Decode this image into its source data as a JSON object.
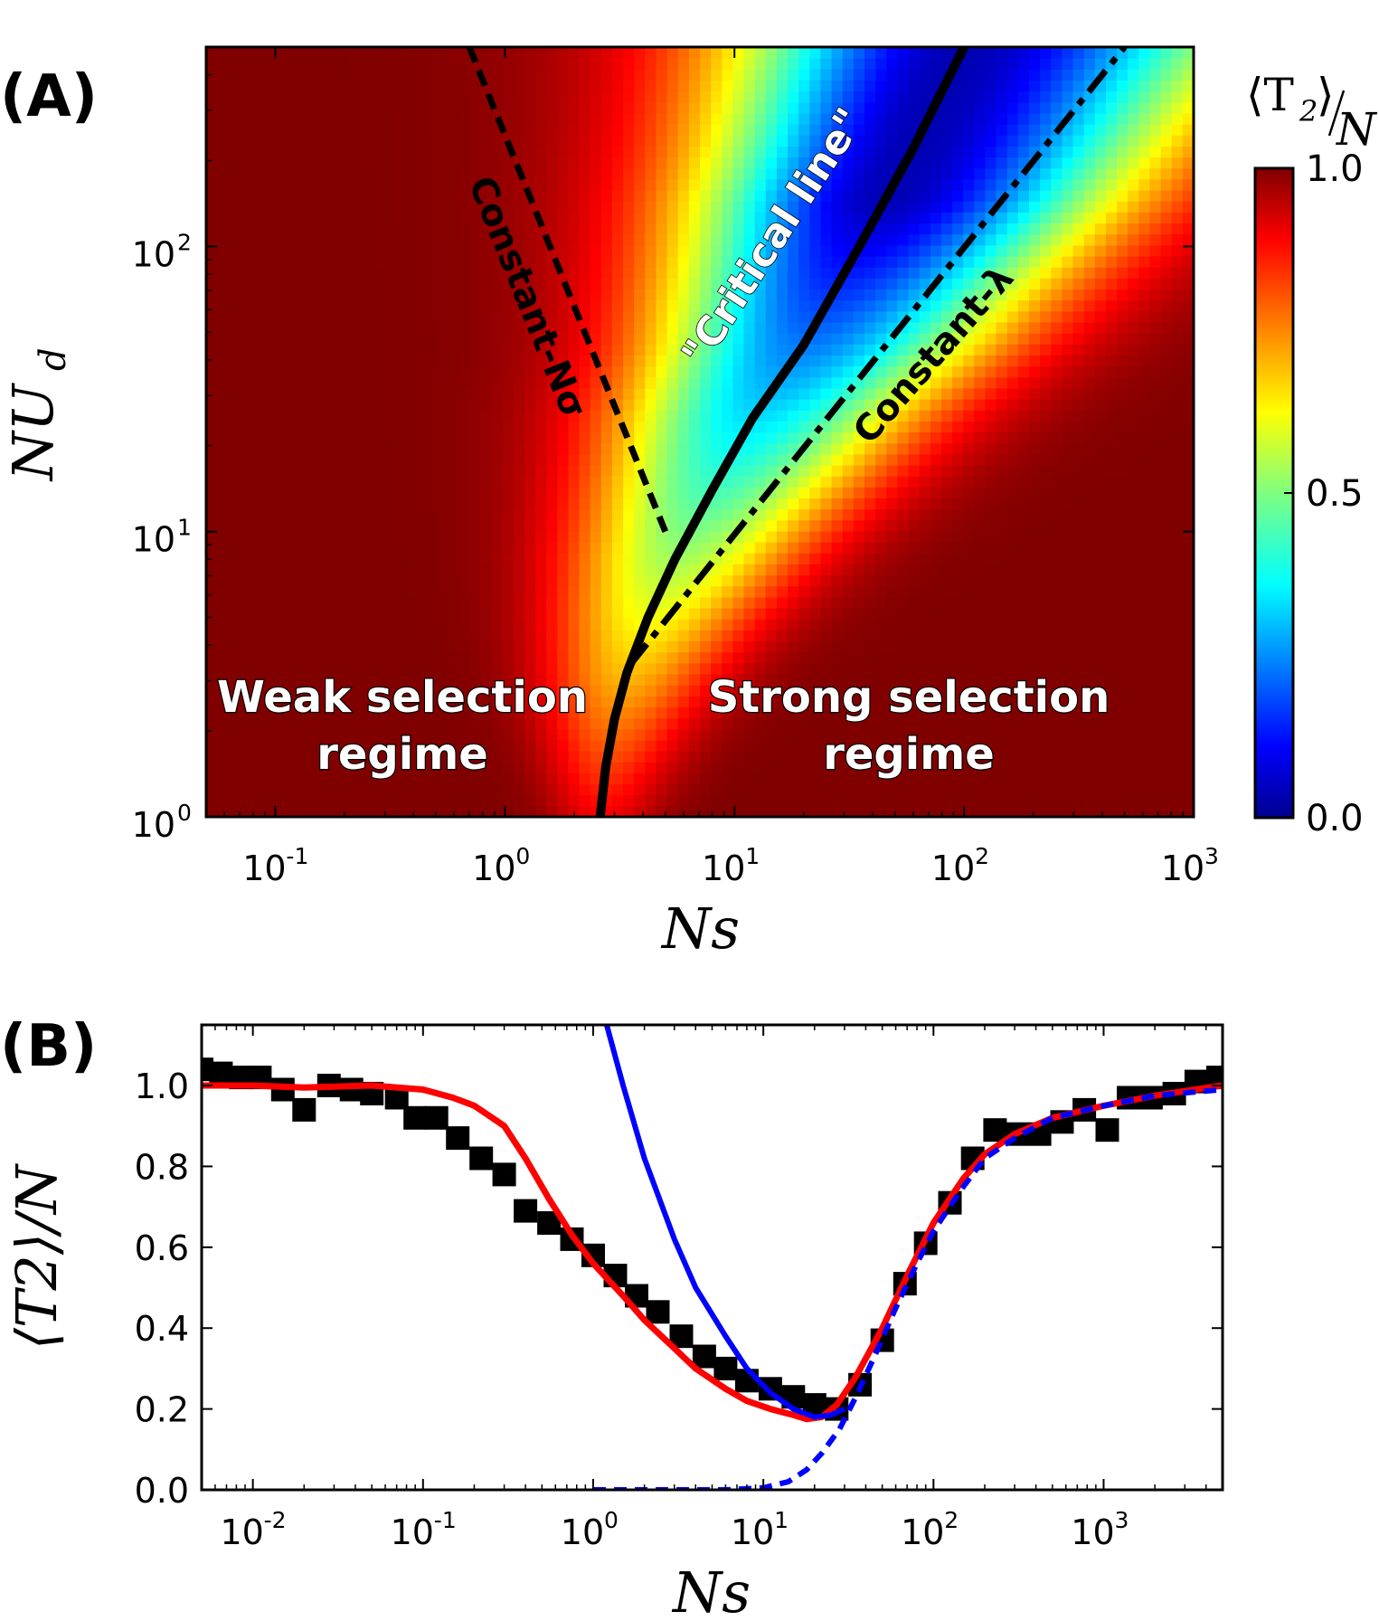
{
  "chart_data": [
    {
      "panel": "(A)",
      "type": "heatmap",
      "xlabel": "Ns",
      "ylabel_main": "NU",
      "ylabel_sub": "d",
      "xscale": "log",
      "yscale": "log",
      "xlim": [
        0.05,
        1000
      ],
      "ylim": [
        1,
        500
      ],
      "x_ticks": [
        {
          "value": 0.1,
          "base": "10",
          "exp": "-1"
        },
        {
          "value": 1,
          "base": "10",
          "exp": "0"
        },
        {
          "value": 10,
          "base": "10",
          "exp": "1"
        },
        {
          "value": 100,
          "base": "10",
          "exp": "2"
        },
        {
          "value": 1000,
          "base": "10",
          "exp": "3"
        }
      ],
      "y_ticks": [
        {
          "value": 1,
          "base": "10",
          "exp": "0"
        },
        {
          "value": 10,
          "base": "10",
          "exp": "1"
        },
        {
          "value": 100,
          "base": "10",
          "exp": "2"
        }
      ],
      "colorbar": {
        "title_top": "⟨T",
        "title_sub": "2",
        "title_close": "⟩",
        "title_den": "N",
        "range": [
          0,
          1
        ],
        "ticks": [
          {
            "value": 1.0,
            "label": "1.0"
          },
          {
            "value": 0.5,
            "label": "0.5"
          },
          {
            "value": 0.0,
            "label": "0.0"
          }
        ],
        "colormap": "jet"
      },
      "lines": [
        {
          "name": "Constant-Nσ",
          "style": "dashed",
          "color": "#000000",
          "points": [
            [
              0.7,
              500
            ],
            [
              5.0,
              10
            ]
          ]
        },
        {
          "name": "\"Critical line\"",
          "style": "solid",
          "color": "#000000",
          "points": [
            [
              2.6,
              1
            ],
            [
              2.75,
              1.5
            ],
            [
              3.0,
              2.2
            ],
            [
              3.4,
              3.2
            ],
            [
              4.2,
              5
            ],
            [
              5.5,
              8
            ],
            [
              8,
              14
            ],
            [
              12,
              25
            ],
            [
              20,
              45
            ],
            [
              35,
              100
            ],
            [
              60,
              220
            ],
            [
              100,
              500
            ]
          ]
        },
        {
          "name": "Constant-λ",
          "style": "dashdot",
          "color": "#000000",
          "points": [
            [
              3.5,
              3.4
            ],
            [
              500,
              500
            ]
          ]
        }
      ],
      "regions": [
        {
          "line1": "Weak selection",
          "line2": "regime"
        },
        {
          "line1": "Strong selection",
          "line2": "regime"
        }
      ]
    },
    {
      "panel": "(B)",
      "type": "scatter",
      "xlabel": "Ns",
      "ylabel": "⟨T2⟩/N",
      "xscale": "log",
      "xlim": [
        0.005,
        5000
      ],
      "ylim": [
        0,
        1.15
      ],
      "x_ticks": [
        {
          "value": 0.01,
          "base": "10",
          "exp": "-2"
        },
        {
          "value": 0.1,
          "base": "10",
          "exp": "-1"
        },
        {
          "value": 1,
          "base": "10",
          "exp": "0"
        },
        {
          "value": 10,
          "base": "10",
          "exp": "1"
        },
        {
          "value": 100,
          "base": "10",
          "exp": "2"
        },
        {
          "value": 1000,
          "base": "10",
          "exp": "3"
        }
      ],
      "y_ticks": [
        {
          "value": 0.0,
          "label": "0.0"
        },
        {
          "value": 0.2,
          "label": "0.2"
        },
        {
          "value": 0.4,
          "label": "0.4"
        },
        {
          "value": 0.6,
          "label": "0.6"
        },
        {
          "value": 0.8,
          "label": "0.8"
        },
        {
          "value": 1.0,
          "label": "1.0"
        }
      ],
      "series": [
        {
          "kind": "markers",
          "marker": "square",
          "color": "#000000",
          "x": [
            0.005,
            0.0065,
            0.0085,
            0.011,
            0.015,
            0.02,
            0.028,
            0.038,
            0.05,
            0.07,
            0.09,
            0.12,
            0.16,
            0.22,
            0.3,
            0.4,
            0.55,
            0.75,
            1.0,
            1.35,
            1.8,
            2.4,
            3.3,
            4.5,
            6,
            8,
            11,
            15,
            20,
            27,
            37,
            50,
            68,
            90,
            125,
            170,
            230,
            310,
            420,
            570,
            770,
            1050,
            1400,
            1900,
            2600,
            3500,
            4700
          ],
          "y": [
            1.04,
            1.03,
            1.02,
            1.02,
            0.99,
            0.94,
            1.0,
            0.99,
            0.98,
            0.97,
            0.92,
            0.92,
            0.87,
            0.82,
            0.78,
            0.69,
            0.66,
            0.62,
            0.58,
            0.53,
            0.48,
            0.44,
            0.38,
            0.33,
            0.3,
            0.27,
            0.25,
            0.23,
            0.21,
            0.2,
            0.26,
            0.37,
            0.51,
            0.61,
            0.71,
            0.82,
            0.89,
            0.88,
            0.88,
            0.91,
            0.94,
            0.89,
            0.97,
            0.97,
            0.98,
            1.01,
            1.02
          ]
        },
        {
          "kind": "line",
          "style": "solid",
          "color": "#ff0000",
          "x": [
            0.005,
            0.01,
            0.02,
            0.05,
            0.1,
            0.15,
            0.2,
            0.3,
            0.4,
            0.55,
            0.75,
            1.0,
            1.5,
            2,
            3,
            4,
            6,
            8,
            11,
            15,
            18,
            22,
            27,
            35,
            50,
            70,
            100,
            150,
            200,
            300,
            500,
            1000,
            2000,
            5000
          ],
          "y": [
            1.0,
            1.0,
            0.995,
            1.0,
            0.99,
            0.97,
            0.95,
            0.9,
            0.82,
            0.72,
            0.63,
            0.56,
            0.48,
            0.42,
            0.35,
            0.3,
            0.25,
            0.22,
            0.2,
            0.185,
            0.175,
            0.18,
            0.21,
            0.28,
            0.4,
            0.53,
            0.66,
            0.77,
            0.83,
            0.88,
            0.92,
            0.95,
            0.975,
            1.0
          ]
        },
        {
          "kind": "line",
          "style": "solid",
          "color": "#0000ff",
          "x": [
            1.2,
            1.5,
            2,
            3,
            4,
            6,
            8,
            11,
            15,
            20,
            25,
            30
          ],
          "y": [
            1.15,
            1.0,
            0.82,
            0.62,
            0.5,
            0.38,
            0.3,
            0.24,
            0.2,
            0.18,
            0.185,
            0.2
          ]
        },
        {
          "kind": "line",
          "style": "dashed",
          "color": "#0000ff",
          "x": [
            1,
            3,
            6,
            10,
            14,
            18,
            22,
            28,
            35,
            45,
            60,
            80,
            100,
            150,
            200,
            300,
            500,
            1000,
            2000,
            5000
          ],
          "y": [
            0.0,
            0.0,
            0.0,
            0.005,
            0.02,
            0.05,
            0.09,
            0.15,
            0.23,
            0.33,
            0.45,
            0.56,
            0.64,
            0.75,
            0.82,
            0.87,
            0.92,
            0.95,
            0.975,
            0.99
          ]
        }
      ]
    }
  ]
}
